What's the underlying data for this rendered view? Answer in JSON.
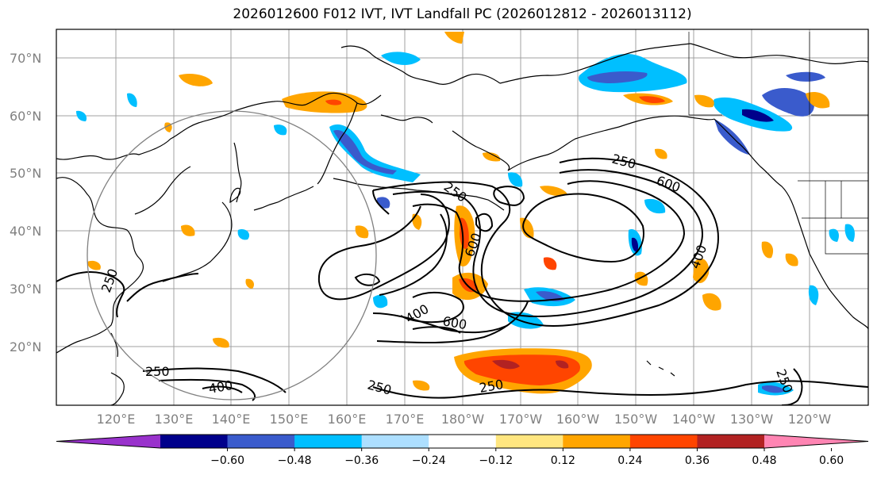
{
  "title": "2026012600 F012 IVT, IVT Landfall PC (2026012812 - 2026013112)",
  "lat_labels": [
    "70°N",
    "60°N",
    "50°N",
    "40°N",
    "30°N",
    "20°N"
  ],
  "lon_labels": [
    "120°E",
    "130°E",
    "140°E",
    "150°E",
    "160°E",
    "170°E",
    "180°W",
    "170°W",
    "160°W",
    "150°W",
    "140°W",
    "130°W",
    "120°W"
  ],
  "contour_labels": [
    "250",
    "250",
    "600",
    "600",
    "400",
    "600",
    "400",
    "250",
    "250",
    "400",
    "250",
    "250",
    "250"
  ],
  "colorbar": {
    "ticks": [
      "−0.60",
      "−0.48",
      "−0.36",
      "−0.24",
      "−0.12",
      "0.12",
      "0.24",
      "0.36",
      "0.48",
      "0.60"
    ],
    "colors": [
      "#9932CC",
      "#00008B",
      "#3A5BCC",
      "#00BFFF",
      "#ADDFFF",
      "#FFFFFF",
      "#FFE680",
      "#FFA500",
      "#FF4500",
      "#B22222",
      "#FF85B3"
    ]
  },
  "colors": {
    "grid": "#a0a0a0",
    "coast": "#000000",
    "circle": "#808080"
  }
}
